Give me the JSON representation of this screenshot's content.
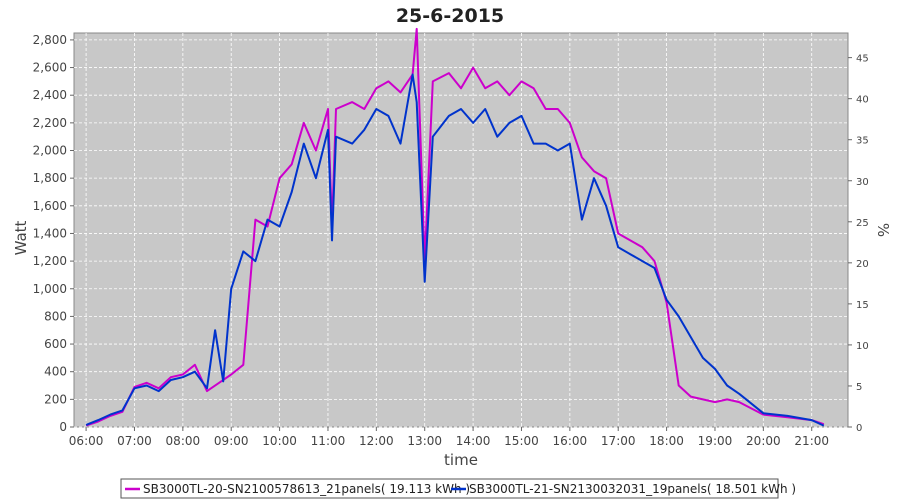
{
  "chart_data": {
    "type": "line",
    "title": "25-6-2015",
    "xlabel": "time",
    "ylabel": "Watt",
    "ylabel_right": "%",
    "x_ticks": [
      "06:00",
      "07:00",
      "08:00",
      "09:00",
      "10:00",
      "11:00",
      "12:00",
      "13:00",
      "14:00",
      "15:00",
      "16:00",
      "17:00",
      "18:00",
      "19:00",
      "20:00",
      "21:00"
    ],
    "y_ticks": [
      "0",
      "200",
      "400",
      "600",
      "800",
      "1,000",
      "1,200",
      "1,400",
      "1,600",
      "1,800",
      "2,000",
      "2,200",
      "2,400",
      "2,600",
      "2,800"
    ],
    "y_ticks_right": [
      "0",
      "5",
      "10",
      "15",
      "20",
      "25",
      "30",
      "35",
      "40",
      "45"
    ],
    "ylim": [
      0,
      2850
    ],
    "ylim_right": [
      0,
      48
    ],
    "xlim": [
      "05:45",
      "21:45"
    ],
    "grid": true,
    "legend_position": "bottom",
    "series": [
      {
        "name": "SB3000TL-20-SN2100578613_21panels( 19.113 kWh )",
        "color": "#cc00cc",
        "points": [
          [
            "06:00",
            10
          ],
          [
            "06:15",
            40
          ],
          [
            "06:30",
            80
          ],
          [
            "06:45",
            110
          ],
          [
            "07:00",
            290
          ],
          [
            "07:15",
            320
          ],
          [
            "07:30",
            280
          ],
          [
            "07:45",
            360
          ],
          [
            "08:00",
            380
          ],
          [
            "08:15",
            450
          ],
          [
            "08:30",
            260
          ],
          [
            "08:45",
            320
          ],
          [
            "09:00",
            380
          ],
          [
            "09:15",
            450
          ],
          [
            "09:30",
            1500
          ],
          [
            "09:45",
            1450
          ],
          [
            "10:00",
            1800
          ],
          [
            "10:15",
            1900
          ],
          [
            "10:30",
            2200
          ],
          [
            "10:45",
            2000
          ],
          [
            "11:00",
            2300
          ],
          [
            "11:05",
            1450
          ],
          [
            "11:10",
            2300
          ],
          [
            "11:30",
            2350
          ],
          [
            "11:45",
            2300
          ],
          [
            "12:00",
            2450
          ],
          [
            "12:15",
            2500
          ],
          [
            "12:30",
            2420
          ],
          [
            "12:45",
            2550
          ],
          [
            "12:50",
            2880
          ],
          [
            "13:00",
            1200
          ],
          [
            "13:10",
            2500
          ],
          [
            "13:30",
            2560
          ],
          [
            "13:45",
            2450
          ],
          [
            "14:00",
            2600
          ],
          [
            "14:15",
            2450
          ],
          [
            "14:30",
            2500
          ],
          [
            "14:45",
            2400
          ],
          [
            "15:00",
            2500
          ],
          [
            "15:15",
            2450
          ],
          [
            "15:30",
            2300
          ],
          [
            "15:45",
            2300
          ],
          [
            "16:00",
            2200
          ],
          [
            "16:15",
            1950
          ],
          [
            "16:30",
            1850
          ],
          [
            "16:45",
            1800
          ],
          [
            "17:00",
            1400
          ],
          [
            "17:15",
            1350
          ],
          [
            "17:30",
            1300
          ],
          [
            "17:45",
            1200
          ],
          [
            "18:00",
            900
          ],
          [
            "18:15",
            300
          ],
          [
            "18:30",
            220
          ],
          [
            "18:45",
            200
          ],
          [
            "19:00",
            180
          ],
          [
            "19:15",
            200
          ],
          [
            "19:30",
            180
          ],
          [
            "20:00",
            90
          ],
          [
            "20:30",
            70
          ],
          [
            "21:00",
            50
          ],
          [
            "21:15",
            20
          ]
        ]
      },
      {
        "name": "SB3000TL-21-SN2130032031_19panels( 18.501 kWh )",
        "color": "#0033cc",
        "points": [
          [
            "06:00",
            15
          ],
          [
            "06:15",
            50
          ],
          [
            "06:30",
            90
          ],
          [
            "06:45",
            120
          ],
          [
            "07:00",
            280
          ],
          [
            "07:15",
            300
          ],
          [
            "07:30",
            260
          ],
          [
            "07:45",
            340
          ],
          [
            "08:00",
            360
          ],
          [
            "08:15",
            400
          ],
          [
            "08:30",
            280
          ],
          [
            "08:40",
            700
          ],
          [
            "08:50",
            330
          ],
          [
            "09:00",
            1000
          ],
          [
            "09:15",
            1270
          ],
          [
            "09:30",
            1200
          ],
          [
            "09:45",
            1500
          ],
          [
            "10:00",
            1450
          ],
          [
            "10:15",
            1700
          ],
          [
            "10:30",
            2050
          ],
          [
            "10:45",
            1800
          ],
          [
            "11:00",
            2150
          ],
          [
            "11:05",
            1350
          ],
          [
            "11:10",
            2100
          ],
          [
            "11:30",
            2050
          ],
          [
            "11:45",
            2150
          ],
          [
            "12:00",
            2300
          ],
          [
            "12:15",
            2250
          ],
          [
            "12:30",
            2050
          ],
          [
            "12:45",
            2550
          ],
          [
            "12:50",
            2350
          ],
          [
            "13:00",
            1050
          ],
          [
            "13:10",
            2100
          ],
          [
            "13:30",
            2250
          ],
          [
            "13:45",
            2300
          ],
          [
            "14:00",
            2200
          ],
          [
            "14:15",
            2300
          ],
          [
            "14:30",
            2100
          ],
          [
            "14:45",
            2200
          ],
          [
            "15:00",
            2250
          ],
          [
            "15:15",
            2050
          ],
          [
            "15:30",
            2050
          ],
          [
            "15:45",
            2000
          ],
          [
            "16:00",
            2050
          ],
          [
            "16:15",
            1500
          ],
          [
            "16:30",
            1800
          ],
          [
            "16:45",
            1600
          ],
          [
            "17:00",
            1300
          ],
          [
            "17:15",
            1250
          ],
          [
            "17:30",
            1200
          ],
          [
            "17:45",
            1150
          ],
          [
            "18:00",
            920
          ],
          [
            "18:15",
            800
          ],
          [
            "18:30",
            650
          ],
          [
            "18:45",
            500
          ],
          [
            "19:00",
            420
          ],
          [
            "19:15",
            300
          ],
          [
            "19:30",
            240
          ],
          [
            "20:00",
            100
          ],
          [
            "20:30",
            80
          ],
          [
            "21:00",
            50
          ],
          [
            "21:15",
            10
          ]
        ]
      }
    ]
  }
}
